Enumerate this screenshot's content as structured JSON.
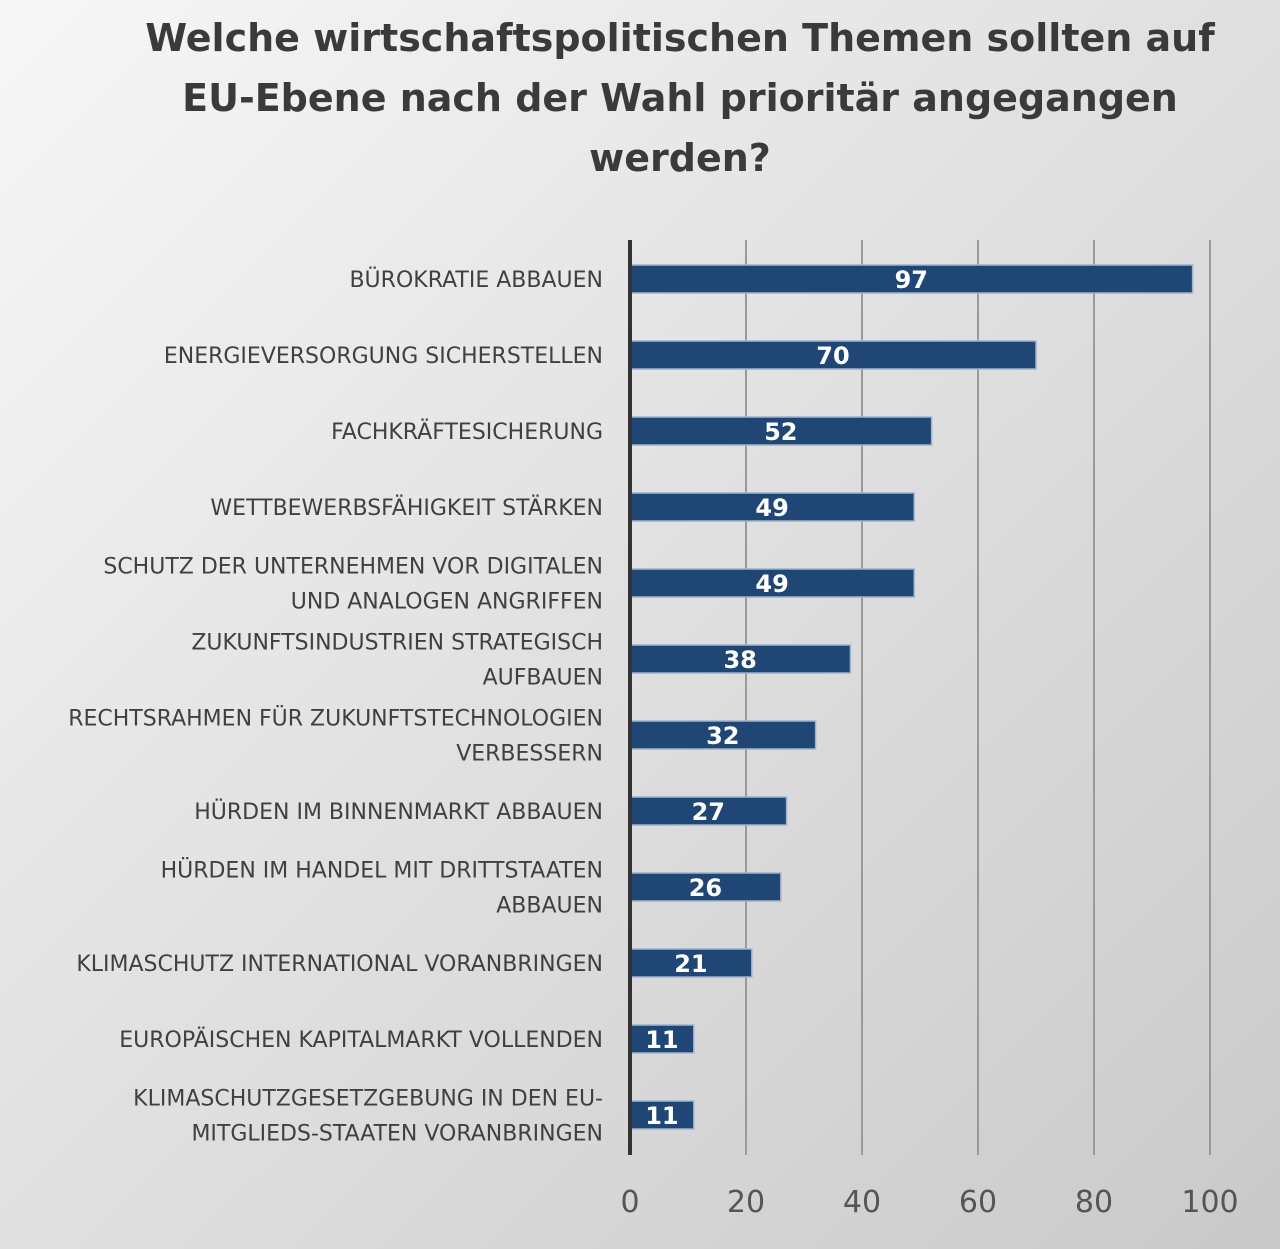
{
  "chart_data": {
    "type": "bar",
    "orientation": "horizontal",
    "title": "Welche wirtschaftspolitischen Themen sollten auf EU-Ebene nach der Wahl prioritär angegangen werden?",
    "categories": [
      [
        "BÜROKRATIE ABBAUEN"
      ],
      [
        "ENERGIEVERSORGUNG SICHERSTELLEN"
      ],
      [
        "FACHKRÄFTESICHERUNG"
      ],
      [
        "WETTBEWERBSFÄHIGKEIT STÄRKEN"
      ],
      [
        "SCHUTZ DER UNTERNEHMEN VOR DIGITALEN",
        "UND ANALOGEN ANGRIFFEN"
      ],
      [
        "ZUKUNFTSINDUSTRIEN STRATEGISCH",
        "AUFBAUEN"
      ],
      [
        "RECHTSRAHMEN FÜR ZUKUNFTSTECHNOLOGIEN",
        "VERBESSERN"
      ],
      [
        "HÜRDEN IM BINNENMARKT ABBAUEN"
      ],
      [
        "HÜRDEN IM HANDEL MIT DRITTSTAATEN",
        "ABBAUEN"
      ],
      [
        "KLIMASCHUTZ INTERNATIONAL VORANBRINGEN"
      ],
      [
        "EUROPÄISCHEN KAPITALMARKT VOLLENDEN"
      ],
      [
        "KLIMASCHUTZGESETZGEBUNG IN DEN EU-",
        "MITGLIEDS-STAATEN VORANBRINGEN"
      ]
    ],
    "values": [
      97,
      70,
      52,
      49,
      49,
      38,
      32,
      27,
      26,
      21,
      11,
      11
    ],
    "xlim": [
      0,
      100
    ],
    "xticks": [
      0,
      20,
      40,
      60,
      80,
      100
    ],
    "grid": "vertical",
    "bar_color": "#1f4675"
  }
}
